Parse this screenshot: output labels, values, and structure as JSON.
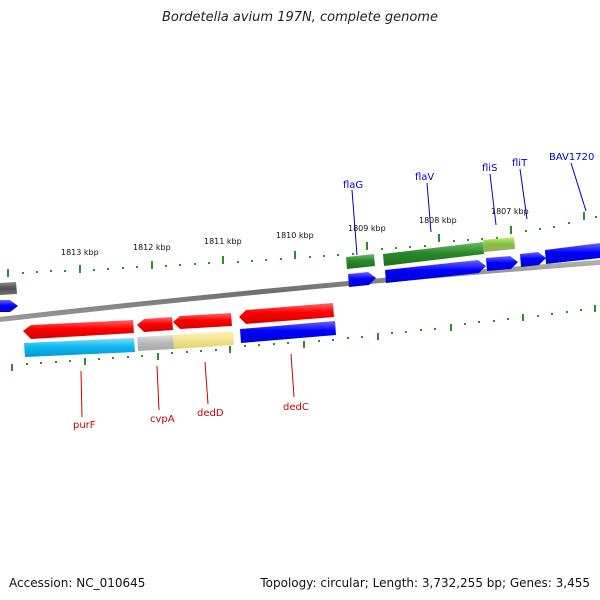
{
  "title": "Bordetella avium 197N, complete genome",
  "footer": {
    "accession": "Accession: NC_010645",
    "summary": "Topology: circular; Length: 3,732,255 bp; Genes: 3,455"
  },
  "scale_labels": [
    "1813 kbp",
    "1812 kbp",
    "1811 kbp",
    "1810 kbp",
    "1809 kbp",
    "1808 kbp",
    "1807 kbp"
  ],
  "genes_top": [
    "flaG",
    "flaV",
    "fliS",
    "fliT",
    "BAV1720"
  ],
  "genes_bottom": [
    "purF",
    "cvpA",
    "dedD",
    "dedC"
  ],
  "colors": {
    "forward_gene": "#0000ff",
    "reverse_gene": "#ff0000",
    "top_label": "#0000cc",
    "bottom_label": "#cc0000",
    "tick": "#2e8b2e",
    "backbone": "#808080"
  }
}
